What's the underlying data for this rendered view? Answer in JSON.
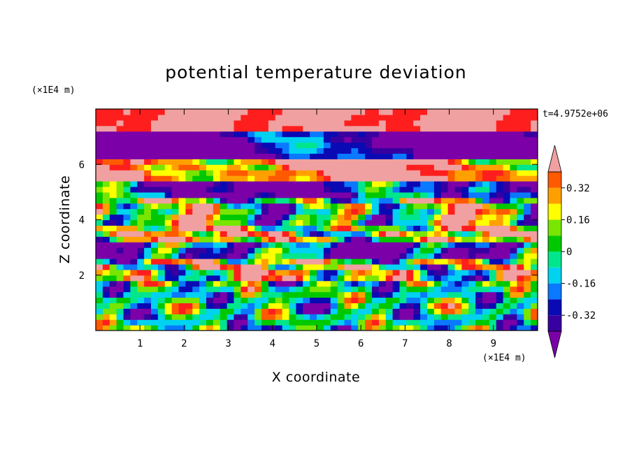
{
  "chart_data": {
    "type": "heatmap",
    "title": "potential temperature deviation",
    "xlabel": "X coordinate",
    "ylabel": "Z coordinate",
    "x_unit": "(×1E4 m)",
    "y_unit": "(×1E4 m)",
    "time_label": "t=4.9752e+06",
    "xlim": [
      0,
      10
    ],
    "ylim": [
      0,
      8
    ],
    "x_ticks": [
      "1",
      "2",
      "3",
      "4",
      "5",
      "6",
      "7",
      "8",
      "9"
    ],
    "y_ticks": [
      "2",
      "4",
      "6"
    ],
    "colorbar": {
      "levels": [
        -0.48,
        -0.4,
        -0.32,
        -0.24,
        -0.16,
        -0.08,
        0,
        0.08,
        0.16,
        0.24,
        0.32,
        0.4,
        0.48
      ],
      "colors": [
        "#7b00a8",
        "#3800a0",
        "#0a0ab4",
        "#0a78ff",
        "#00d2f0",
        "#00e68c",
        "#00c800",
        "#78e600",
        "#ffff00",
        "#ffa000",
        "#ff5a00",
        "#ff1e1e",
        "#f0a0a0"
      ],
      "tick_labels": [
        "0.32",
        "0.16",
        "0",
        "-0.16",
        "-0.32"
      ],
      "tick_values": [
        0.32,
        0.16,
        0,
        -0.16,
        -0.32
      ],
      "extend": "both"
    },
    "bands": [
      {
        "z0": 7.2,
        "z1": 8.0,
        "base": 0.5,
        "amp": 0.05,
        "wave": 0.0
      },
      {
        "z0": 6.3,
        "z1": 7.2,
        "base": -0.5,
        "amp": 0.1,
        "wave": 0.35
      },
      {
        "z0": 5.4,
        "z1": 6.3,
        "base": 0.45,
        "amp": 0.15,
        "wave": 0.3
      },
      {
        "z0": 4.8,
        "z1": 5.4,
        "base": -0.35,
        "amp": 0.2,
        "wave": 0.25
      },
      {
        "z0": 3.8,
        "z1": 4.8,
        "base": 0.05,
        "amp": 0.35,
        "wave": 0.2
      },
      {
        "z0": 3.2,
        "z1": 3.8,
        "base": 0.2,
        "amp": 0.3,
        "wave": 0.2
      },
      {
        "z0": 2.6,
        "z1": 3.2,
        "base": -0.3,
        "amp": 0.3,
        "wave": 0.2
      },
      {
        "z0": 1.8,
        "z1": 2.6,
        "base": 0.15,
        "amp": 0.35,
        "wave": 0.15
      },
      {
        "z0": 0.0,
        "z1": 1.8,
        "base": 0.0,
        "amp": 0.3,
        "wave": 0.0
      }
    ]
  }
}
